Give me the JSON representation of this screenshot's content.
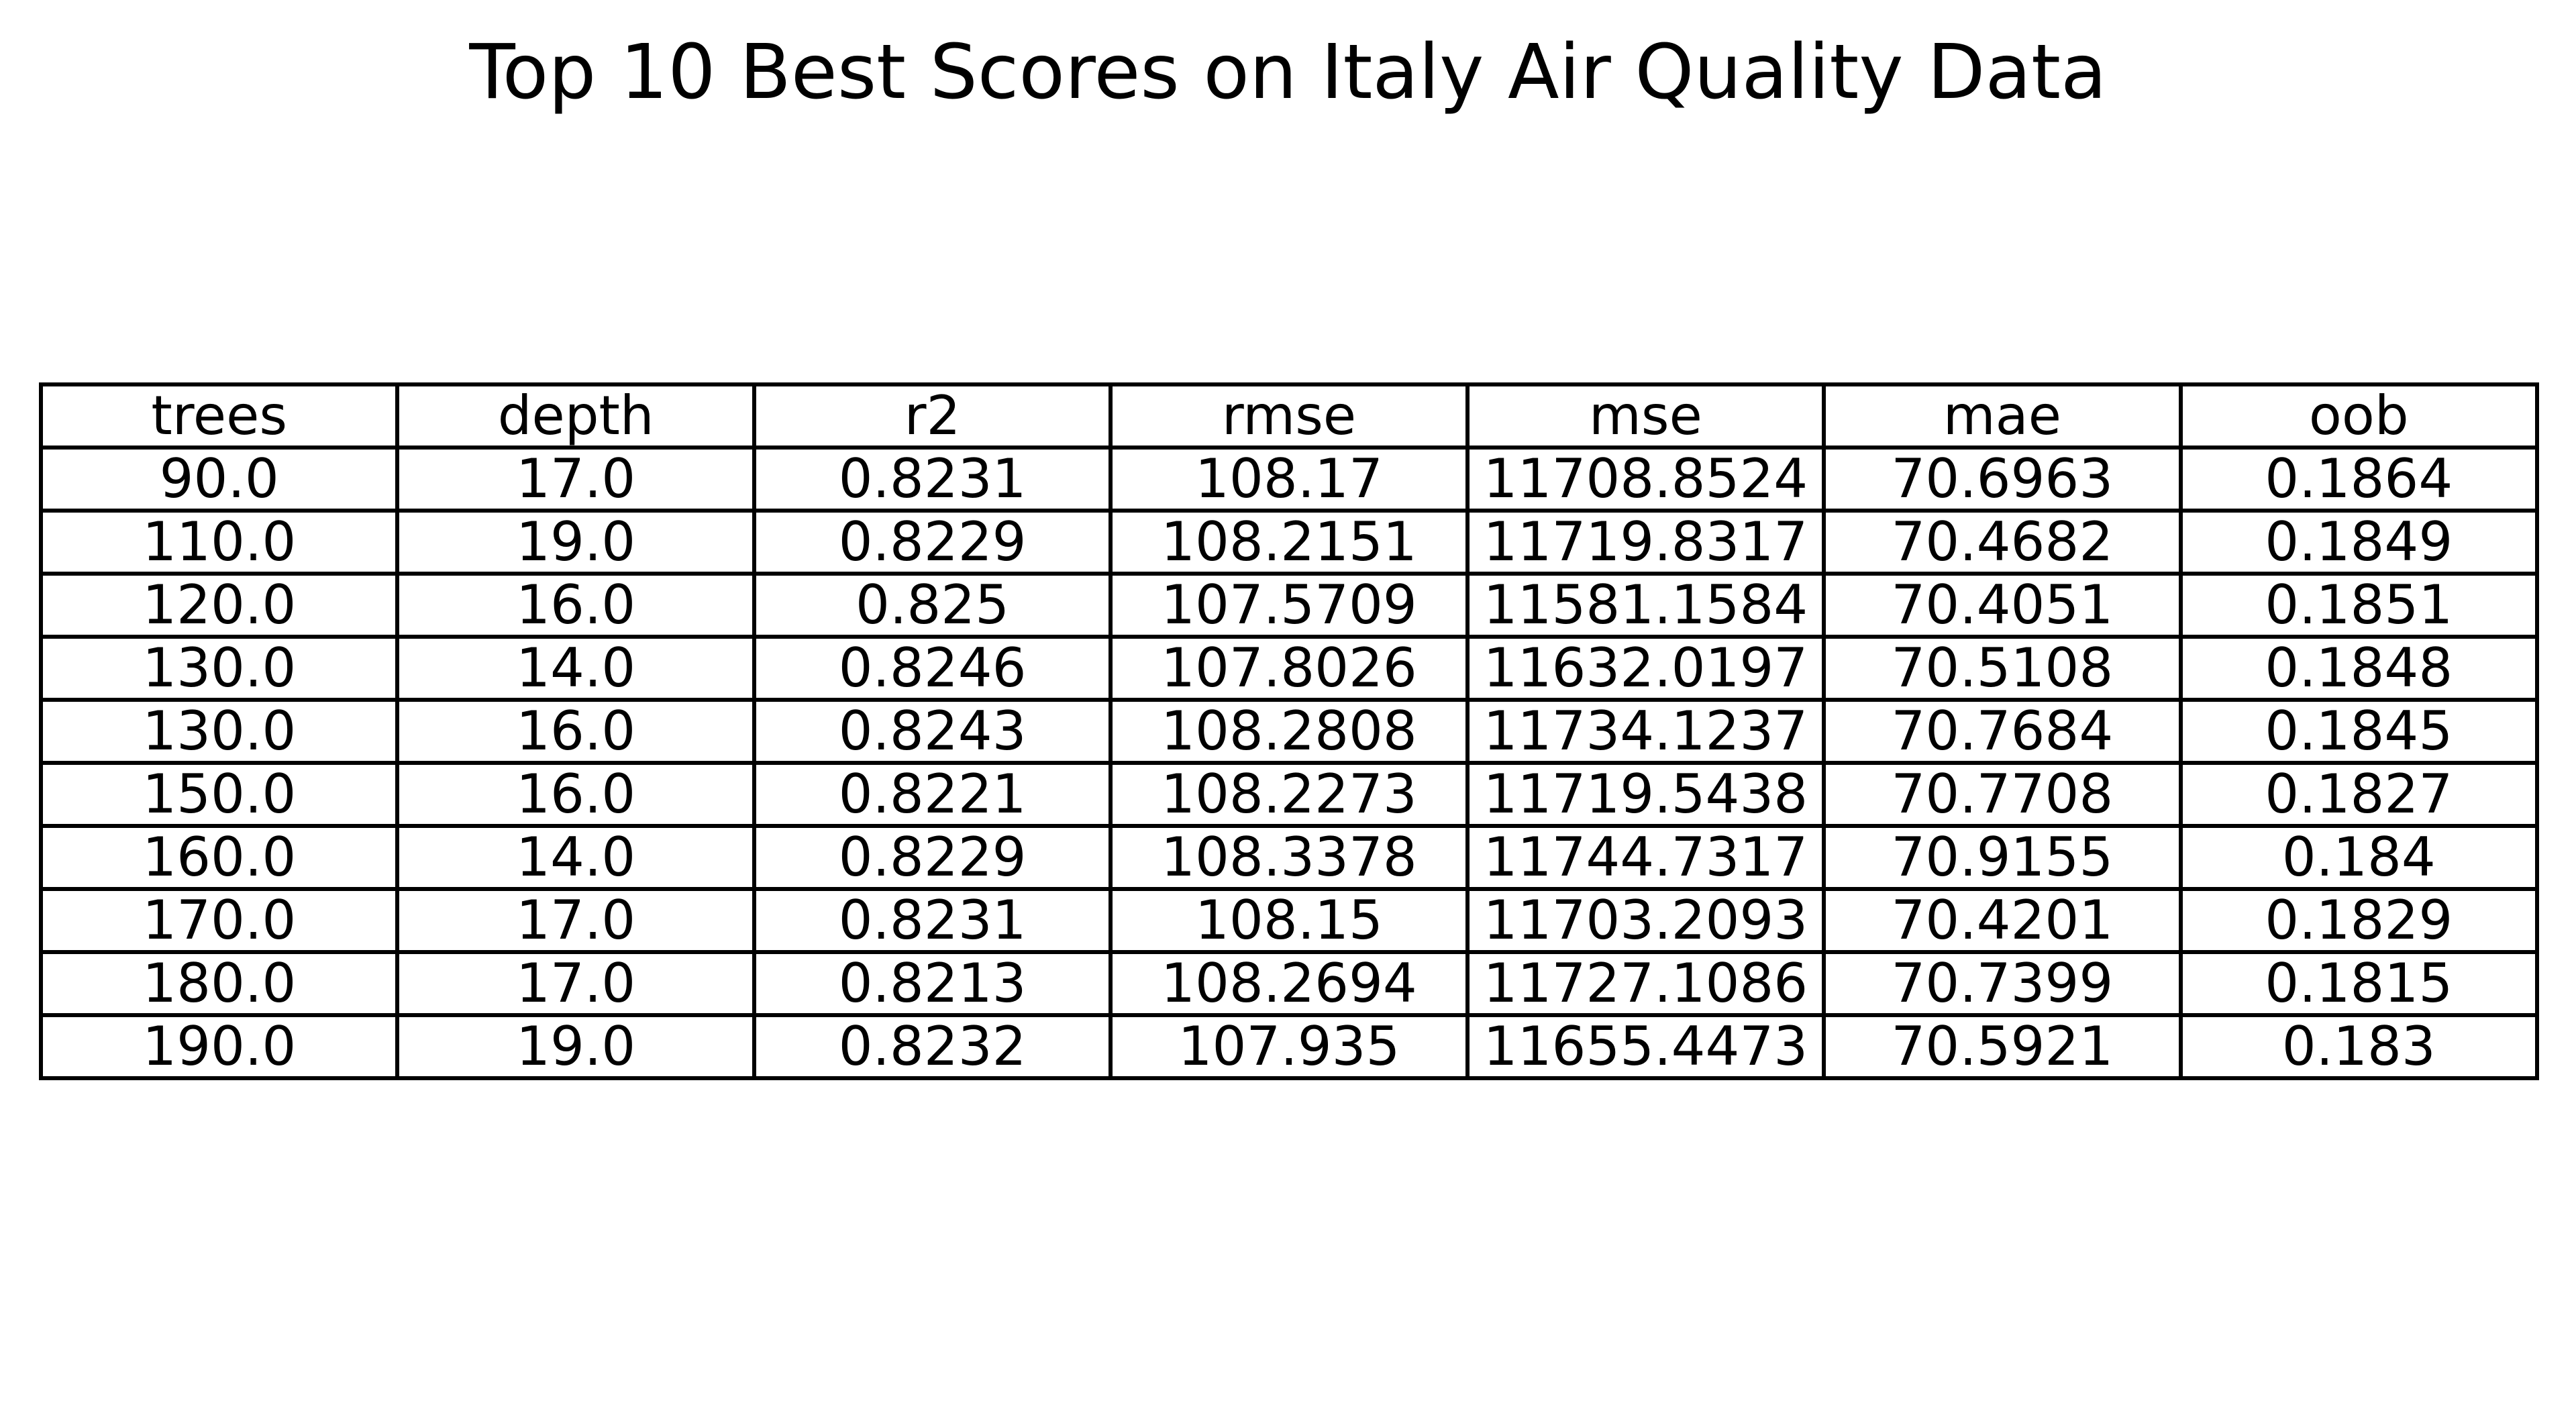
{
  "chart_data": {
    "type": "table",
    "title": "Top 10 Best Scores on Italy Air Quality Data",
    "columns": [
      "trees",
      "depth",
      "r2",
      "rmse",
      "mse",
      "mae",
      "oob"
    ],
    "rows": [
      [
        "90.0",
        "17.0",
        "0.8231",
        "108.17",
        "11708.8524",
        "70.6963",
        "0.1864"
      ],
      [
        "110.0",
        "19.0",
        "0.8229",
        "108.2151",
        "11719.8317",
        "70.4682",
        "0.1849"
      ],
      [
        "120.0",
        "16.0",
        "0.825",
        "107.5709",
        "11581.1584",
        "70.4051",
        "0.1851"
      ],
      [
        "130.0",
        "14.0",
        "0.8246",
        "107.8026",
        "11632.0197",
        "70.5108",
        "0.1848"
      ],
      [
        "130.0",
        "16.0",
        "0.8243",
        "108.2808",
        "11734.1237",
        "70.7684",
        "0.1845"
      ],
      [
        "150.0",
        "16.0",
        "0.8221",
        "108.2273",
        "11719.5438",
        "70.7708",
        "0.1827"
      ],
      [
        "160.0",
        "14.0",
        "0.8229",
        "108.3378",
        "11744.7317",
        "70.9155",
        "0.184"
      ],
      [
        "170.0",
        "17.0",
        "0.8231",
        "108.15",
        "11703.2093",
        "70.4201",
        "0.1829"
      ],
      [
        "180.0",
        "17.0",
        "0.8213",
        "108.2694",
        "11727.1086",
        "70.7399",
        "0.1815"
      ],
      [
        "190.0",
        "19.0",
        "0.8232",
        "107.935",
        "11655.4473",
        "70.5921",
        "0.183"
      ]
    ]
  }
}
